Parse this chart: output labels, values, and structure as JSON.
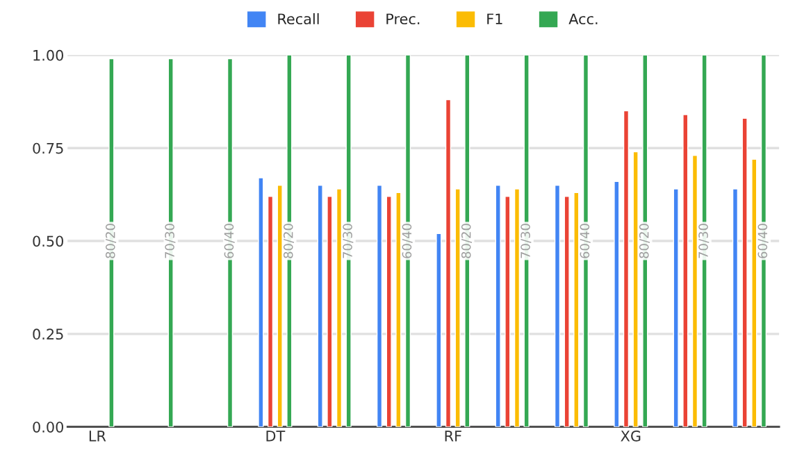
{
  "chart_data": {
    "type": "bar",
    "categories": [
      "LR",
      null,
      null,
      "DT",
      null,
      null,
      "RF",
      null,
      null,
      "XG",
      null,
      null
    ],
    "series": [
      {
        "name": "Recall",
        "color": "#4285f4",
        "values": [
          null,
          null,
          null,
          0.67,
          0.65,
          0.65,
          0.52,
          0.65,
          0.65,
          0.66,
          0.64,
          0.64
        ]
      },
      {
        "name": "Prec.",
        "color": "#ea4335",
        "values": [
          null,
          null,
          null,
          0.62,
          0.62,
          0.62,
          0.88,
          0.62,
          0.62,
          0.85,
          0.84,
          0.83
        ]
      },
      {
        "name": "F1",
        "color": "#fbbc04",
        "values": [
          null,
          null,
          null,
          0.65,
          0.64,
          0.63,
          0.64,
          0.64,
          0.63,
          0.74,
          0.73,
          0.72
        ]
      },
      {
        "name": "Acc.",
        "color": "#34a853",
        "values": [
          0.99,
          0.99,
          0.99,
          1.0,
          1.0,
          1.0,
          1.0,
          1.0,
          1.0,
          1.0,
          1.0,
          1.0
        ]
      }
    ],
    "annotations": [
      "80/20",
      "70/30",
      "60/40",
      "80/20",
      "70/30",
      "60/40",
      "80/20",
      "70/30",
      "60/40",
      "80/20",
      "70/30",
      "60/40"
    ],
    "ylim": [
      0,
      1.0
    ],
    "yticks": [
      {
        "value": 0,
        "label": "0.00"
      },
      {
        "value": 0.25,
        "label": "0.25"
      },
      {
        "value": 0.5,
        "label": "0.50"
      },
      {
        "value": 0.75,
        "label": "0.75"
      },
      {
        "value": 1.0,
        "label": "1.00"
      }
    ],
    "grid": "y",
    "legend": "top"
  }
}
